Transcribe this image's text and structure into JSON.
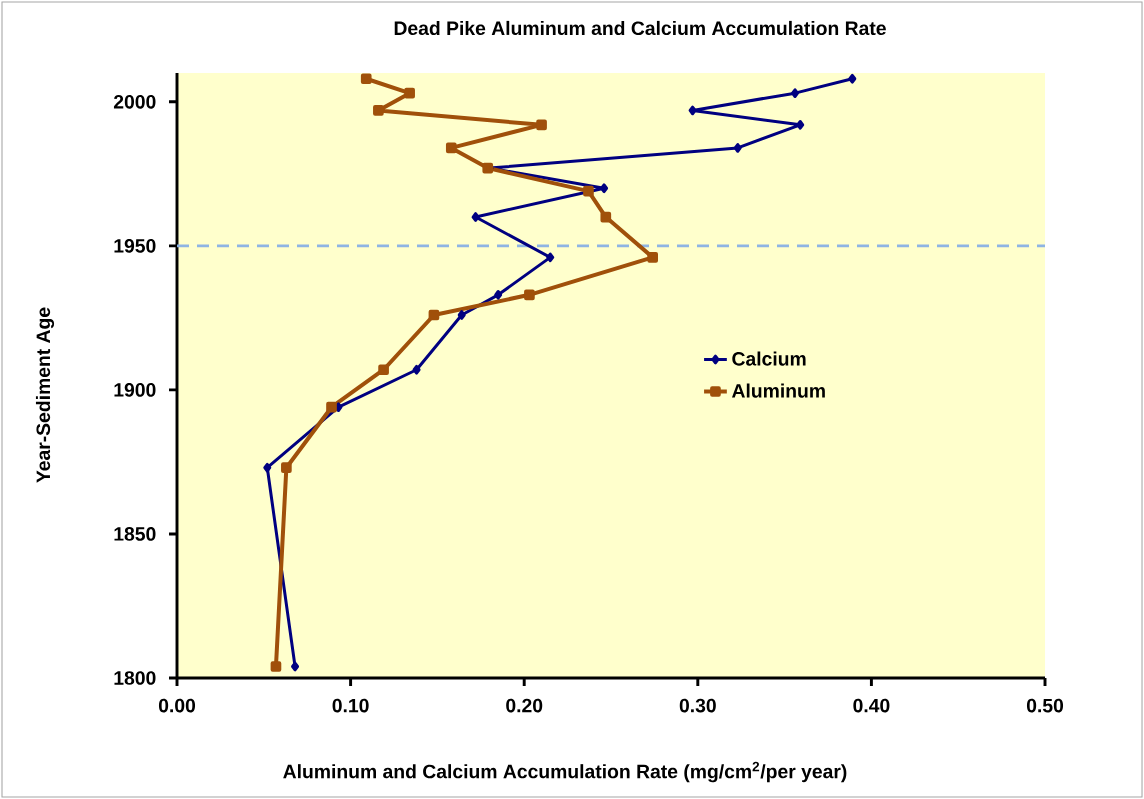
{
  "chart_data": {
    "type": "line",
    "title": "Dead Pike Aluminum and Calcium Accumulation Rate",
    "xlabel": "Aluminum and Calcium Accumulation Rate (mg/cm$^{2}$/per year)",
    "ylabel": "Year-Sediment Age",
    "series": [
      {
        "name": "Calcium",
        "color": "#000080",
        "marker": "diamond",
        "x": [
          0.389,
          0.356,
          0.297,
          0.359,
          0.323,
          0.18,
          0.246,
          0.172,
          0.215,
          0.185,
          0.164,
          0.138,
          0.093,
          0.052,
          0.068
        ],
        "values": [
          2008,
          2003,
          1997,
          1992,
          1984,
          1977,
          1970,
          1960,
          1946,
          1933,
          1926,
          1907,
          1894,
          1873,
          1804
        ]
      },
      {
        "name": "Aluminum",
        "color": "#a0500a",
        "marker": "square",
        "x": [
          0.109,
          0.134,
          0.116,
          0.21,
          0.158,
          0.179,
          0.237,
          0.247,
          0.274,
          0.203,
          0.148,
          0.119,
          0.089,
          0.063,
          0.057
        ],
        "values": [
          2008,
          2003,
          1997,
          1992,
          1984,
          1977,
          1969,
          1960,
          1946,
          1933,
          1926,
          1907,
          1894,
          1873,
          1804
        ]
      }
    ],
    "xlim": [
      0,
      0.5
    ],
    "xticks": [
      {
        "value": 0,
        "label": "0.00"
      },
      {
        "value": 0.1,
        "label": "0.10"
      },
      {
        "value": 0.2,
        "label": "0.20"
      },
      {
        "value": 0.3,
        "label": "0.30"
      },
      {
        "value": 0.4,
        "label": "0.40"
      },
      {
        "value": 0.5,
        "label": "0.50"
      }
    ],
    "ylim": [
      1800,
      2010
    ],
    "yticks": [
      1800,
      1850,
      1900,
      1950,
      2000
    ],
    "ref_lines": [
      {
        "axis": "y",
        "value": 1950,
        "color": "#8eb4e3",
        "line_style": "dashed"
      }
    ],
    "legend": "right",
    "grid": false,
    "line_style": "solid"
  }
}
